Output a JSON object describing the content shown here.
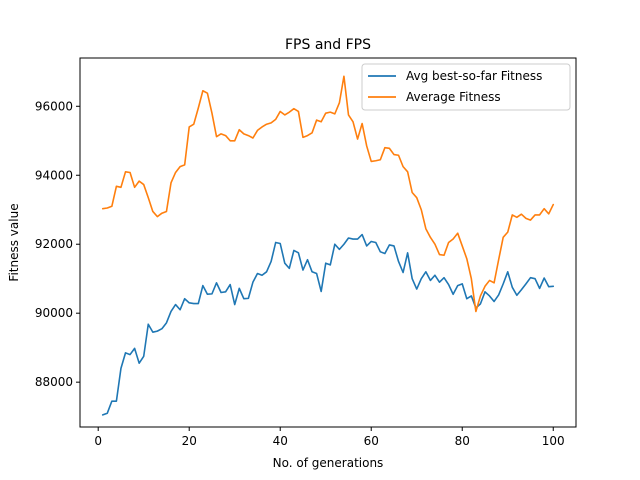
{
  "chart_data": {
    "type": "line",
    "title": "FPS and FPS",
    "xlabel": "No. of generations",
    "ylabel": "Fitness value",
    "xlim": [
      -4,
      105
    ],
    "ylim": [
      86700,
      97400
    ],
    "xticks": [
      0,
      20,
      40,
      60,
      80,
      100
    ],
    "yticks": [
      88000,
      90000,
      92000,
      94000,
      96000
    ],
    "legend_position": "upper right",
    "series": [
      {
        "name": "Avg best-so-far Fitness",
        "color": "#1f77b4",
        "x": [
          1,
          2,
          3,
          4,
          5,
          6,
          7,
          8,
          9,
          10,
          11,
          12,
          13,
          14,
          15,
          16,
          17,
          18,
          19,
          20,
          21,
          22,
          23,
          24,
          25,
          26,
          27,
          28,
          29,
          30,
          31,
          32,
          33,
          34,
          35,
          36,
          37,
          38,
          39,
          40,
          41,
          42,
          43,
          44,
          45,
          46,
          47,
          48,
          49,
          50,
          51,
          52,
          53,
          54,
          55,
          56,
          57,
          58,
          59,
          60,
          61,
          62,
          63,
          64,
          65,
          66,
          67,
          68,
          69,
          70,
          71,
          72,
          73,
          74,
          75,
          76,
          77,
          78,
          79,
          80,
          81,
          82,
          83,
          84,
          85,
          86,
          87,
          88,
          89,
          90,
          91,
          92,
          93,
          94,
          95,
          96,
          97,
          98,
          99,
          100
        ],
        "values": [
          87050,
          87100,
          87450,
          87450,
          88400,
          88850,
          88800,
          88980,
          88550,
          88750,
          89680,
          89450,
          89480,
          89550,
          89720,
          90050,
          90250,
          90100,
          90420,
          90300,
          90280,
          90280,
          90800,
          90550,
          90560,
          90880,
          90600,
          90620,
          90830,
          90250,
          90720,
          90420,
          90430,
          90900,
          91150,
          91100,
          91200,
          91500,
          92050,
          92020,
          91450,
          91300,
          91820,
          91750,
          91250,
          91550,
          91200,
          91150,
          90630,
          91450,
          91400,
          92000,
          91850,
          92000,
          92180,
          92150,
          92150,
          92280,
          91950,
          92080,
          92050,
          91780,
          91730,
          91980,
          91950,
          91500,
          91180,
          91750,
          91000,
          90700,
          91000,
          91200,
          90950,
          91100,
          90900,
          91030,
          90830,
          90550,
          90800,
          90850,
          90420,
          90500,
          90150,
          90270,
          90620,
          90500,
          90340,
          90530,
          90850,
          91200,
          90750,
          90520,
          90680,
          90850,
          91030,
          91000,
          90720,
          91020,
          90770,
          90780
        ]
      },
      {
        "name": "Average Fitness",
        "color": "#ff7f0e",
        "x": [
          1,
          2,
          3,
          4,
          5,
          6,
          7,
          8,
          9,
          10,
          11,
          12,
          13,
          14,
          15,
          16,
          17,
          18,
          19,
          20,
          21,
          22,
          23,
          24,
          25,
          26,
          27,
          28,
          29,
          30,
          31,
          32,
          33,
          34,
          35,
          36,
          37,
          38,
          39,
          40,
          41,
          42,
          43,
          44,
          45,
          46,
          47,
          48,
          49,
          50,
          51,
          52,
          53,
          54,
          55,
          56,
          57,
          58,
          59,
          60,
          61,
          62,
          63,
          64,
          65,
          66,
          67,
          68,
          69,
          70,
          71,
          72,
          73,
          74,
          75,
          76,
          77,
          78,
          79,
          80,
          81,
          82,
          83,
          84,
          85,
          86,
          87,
          88,
          89,
          90,
          91,
          92,
          93,
          94,
          95,
          96,
          97,
          98,
          99,
          100
        ],
        "values": [
          93030,
          93050,
          93100,
          93680,
          93650,
          94100,
          94080,
          93650,
          93830,
          93730,
          93350,
          92950,
          92800,
          92900,
          92950,
          93780,
          94080,
          94250,
          94300,
          95400,
          95480,
          95950,
          96450,
          96380,
          95800,
          95120,
          95200,
          95150,
          95000,
          95000,
          95320,
          95200,
          95150,
          95080,
          95300,
          95400,
          95480,
          95520,
          95620,
          95850,
          95750,
          95830,
          95930,
          95850,
          95100,
          95150,
          95230,
          95600,
          95550,
          95800,
          95830,
          95780,
          96100,
          96870,
          95750,
          95550,
          95050,
          95500,
          94850,
          94400,
          94420,
          94450,
          94800,
          94780,
          94600,
          94580,
          94250,
          94100,
          93500,
          93350,
          93000,
          92450,
          92200,
          92000,
          91700,
          91680,
          92050,
          92150,
          92320,
          91950,
          91580,
          91000,
          90050,
          90500,
          90780,
          90950,
          90880,
          91550,
          92200,
          92350,
          92850,
          92780,
          92870,
          92750,
          92700,
          92850,
          92850,
          93030,
          92880,
          93150
        ]
      }
    ]
  }
}
